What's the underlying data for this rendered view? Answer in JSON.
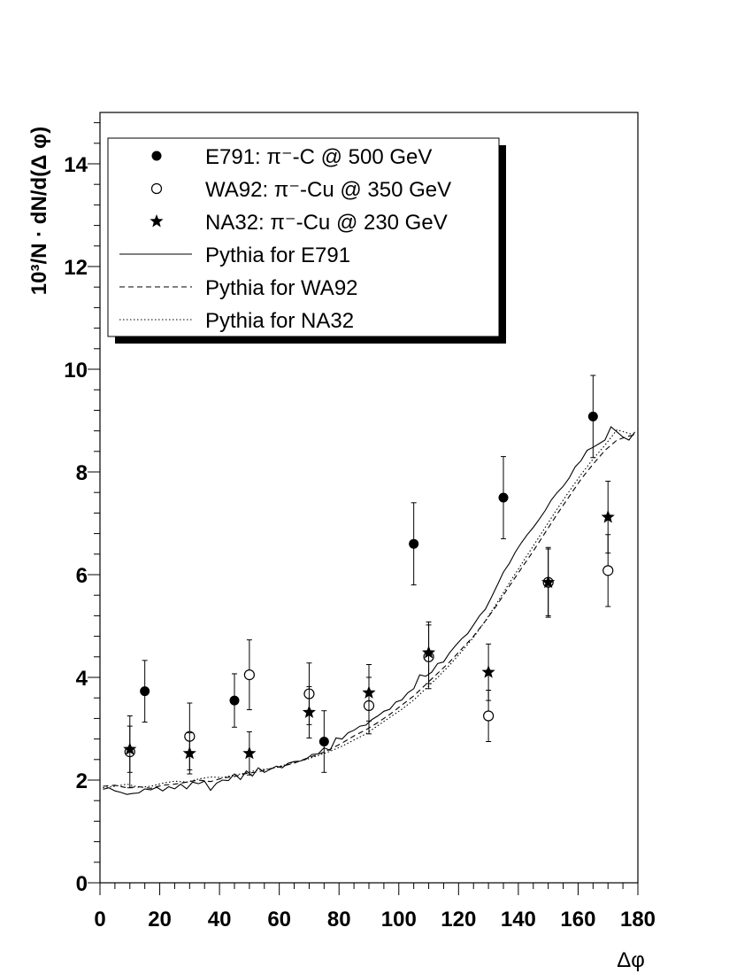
{
  "chart_data": {
    "type": "scatter",
    "title": "",
    "xlabel": "Δφ",
    "ylabel": "10³/N · dN/d(Δ φ)",
    "xlim": [
      0,
      180
    ],
    "ylim": [
      0,
      15
    ],
    "x_ticks": [
      0,
      20,
      40,
      60,
      80,
      100,
      120,
      140,
      160,
      180
    ],
    "y_ticks": [
      0,
      2,
      4,
      6,
      8,
      10,
      12,
      14
    ],
    "grid": false,
    "legend_position": "top-left",
    "legend": [
      {
        "label": "E791: π⁻-C @ 500 GeV",
        "marker": "filled-circle"
      },
      {
        "label": "WA92: π⁻-Cu @ 350 GeV",
        "marker": "open-circle"
      },
      {
        "label": "NA32: π⁻-Cu @ 230 GeV",
        "marker": "star"
      },
      {
        "label": "Pythia for E791",
        "line": "solid"
      },
      {
        "label": "Pythia for WA92",
        "line": "dashed"
      },
      {
        "label": "Pythia for NA32",
        "line": "dotted"
      }
    ],
    "series": [
      {
        "marker": "filled-circle",
        "x": [
          15,
          45,
          75,
          105,
          135,
          165
        ],
        "y": [
          3.73,
          3.55,
          2.75,
          6.6,
          7.5,
          9.08
        ],
        "err": [
          0.6,
          0.52,
          0.6,
          0.8,
          0.8,
          0.8
        ]
      },
      {
        "marker": "open-circle",
        "x": [
          10,
          30,
          50,
          70,
          90,
          110,
          130,
          150,
          170
        ],
        "y": [
          2.55,
          2.85,
          4.05,
          3.68,
          3.45,
          4.4,
          3.25,
          5.85,
          6.08
        ],
        "err": [
          0.7,
          0.65,
          0.68,
          0.6,
          0.55,
          0.62,
          0.5,
          0.65,
          0.7
        ]
      },
      {
        "marker": "star",
        "x": [
          10,
          30,
          50,
          70,
          90,
          110,
          130,
          150,
          170
        ],
        "y": [
          2.6,
          2.52,
          2.52,
          3.32,
          3.7,
          4.48,
          4.1,
          5.85,
          7.12
        ],
        "err": [
          0.45,
          0.4,
          0.42,
          0.5,
          0.55,
          0.6,
          0.55,
          0.68,
          0.7
        ]
      },
      {
        "line": "solid",
        "x": [
          1,
          3,
          5,
          7,
          9,
          11,
          13,
          15,
          17,
          19,
          21,
          23,
          25,
          27,
          29,
          31,
          33,
          35,
          37,
          39,
          41,
          43,
          45,
          47,
          49,
          51,
          53,
          55,
          57,
          59,
          61,
          63,
          65,
          67,
          69,
          71,
          73,
          75,
          77,
          79,
          81,
          83,
          85,
          87,
          89,
          91,
          93,
          95,
          97,
          99,
          101,
          103,
          105,
          107,
          109,
          111,
          113,
          115,
          117,
          119,
          121,
          123,
          125,
          127,
          129,
          131,
          133,
          135,
          137,
          139,
          141,
          143,
          145,
          147,
          149,
          151,
          153,
          155,
          157,
          159,
          161,
          163,
          165,
          167,
          169,
          171,
          173,
          175,
          177,
          179
        ],
        "y": [
          1.82,
          1.85,
          1.79,
          1.76,
          1.72,
          1.74,
          1.75,
          1.83,
          1.81,
          1.86,
          1.79,
          1.87,
          1.83,
          1.92,
          1.83,
          1.96,
          1.93,
          1.98,
          1.8,
          1.94,
          2.0,
          1.99,
          2.12,
          2.01,
          2.18,
          2.08,
          2.24,
          2.15,
          2.21,
          2.27,
          2.24,
          2.33,
          2.36,
          2.37,
          2.41,
          2.5,
          2.51,
          2.63,
          2.58,
          2.82,
          2.8,
          2.92,
          2.97,
          3.05,
          3.07,
          3.18,
          3.25,
          3.34,
          3.38,
          3.52,
          3.56,
          3.7,
          3.78,
          4.05,
          4.02,
          4.1,
          4.27,
          4.3,
          4.48,
          4.62,
          4.75,
          4.85,
          5.02,
          5.2,
          5.33,
          5.56,
          5.8,
          6.05,
          6.22,
          6.44,
          6.62,
          6.78,
          6.92,
          7.08,
          7.25,
          7.45,
          7.6,
          7.72,
          7.88,
          8.1,
          8.22,
          8.42,
          8.48,
          8.55,
          8.62,
          8.88,
          8.78,
          8.68,
          8.62,
          8.78
        ]
      },
      {
        "line": "dashed",
        "x": [
          1,
          5,
          9,
          13,
          17,
          21,
          25,
          29,
          33,
          37,
          41,
          45,
          49,
          53,
          57,
          61,
          65,
          69,
          73,
          77,
          81,
          85,
          89,
          93,
          97,
          101,
          105,
          109,
          113,
          117,
          121,
          125,
          129,
          133,
          137,
          141,
          145,
          149,
          153,
          157,
          161,
          165,
          169,
          173,
          177,
          179
        ],
        "y": [
          1.88,
          1.9,
          1.85,
          1.87,
          1.84,
          1.9,
          1.92,
          1.96,
          2.0,
          1.97,
          2.04,
          2.07,
          2.13,
          2.16,
          2.22,
          2.27,
          2.33,
          2.42,
          2.5,
          2.6,
          2.72,
          2.86,
          2.98,
          3.12,
          3.28,
          3.46,
          3.64,
          3.86,
          4.08,
          4.3,
          4.55,
          4.8,
          5.1,
          5.42,
          5.78,
          6.12,
          6.46,
          6.82,
          7.18,
          7.52,
          7.86,
          8.15,
          8.42,
          8.62,
          8.7,
          8.72
        ]
      },
      {
        "line": "dotted",
        "x": [
          1,
          5,
          9,
          13,
          17,
          21,
          25,
          29,
          33,
          37,
          41,
          45,
          49,
          53,
          57,
          61,
          65,
          69,
          73,
          77,
          81,
          85,
          89,
          93,
          97,
          101,
          105,
          109,
          113,
          117,
          121,
          125,
          129,
          133,
          137,
          141,
          145,
          149,
          153,
          157,
          161,
          165,
          169,
          173,
          177,
          179
        ],
        "y": [
          1.85,
          1.88,
          1.92,
          1.86,
          1.88,
          1.94,
          1.98,
          1.96,
          2.02,
          2.06,
          2.05,
          2.1,
          2.14,
          2.2,
          2.22,
          2.28,
          2.35,
          2.4,
          2.48,
          2.56,
          2.66,
          2.78,
          2.9,
          3.06,
          3.22,
          3.38,
          3.56,
          3.78,
          4.0,
          4.24,
          4.5,
          4.78,
          5.1,
          5.46,
          5.84,
          6.2,
          6.56,
          6.92,
          7.28,
          7.62,
          7.95,
          8.25,
          8.52,
          8.82,
          8.75,
          8.72
        ]
      }
    ]
  }
}
